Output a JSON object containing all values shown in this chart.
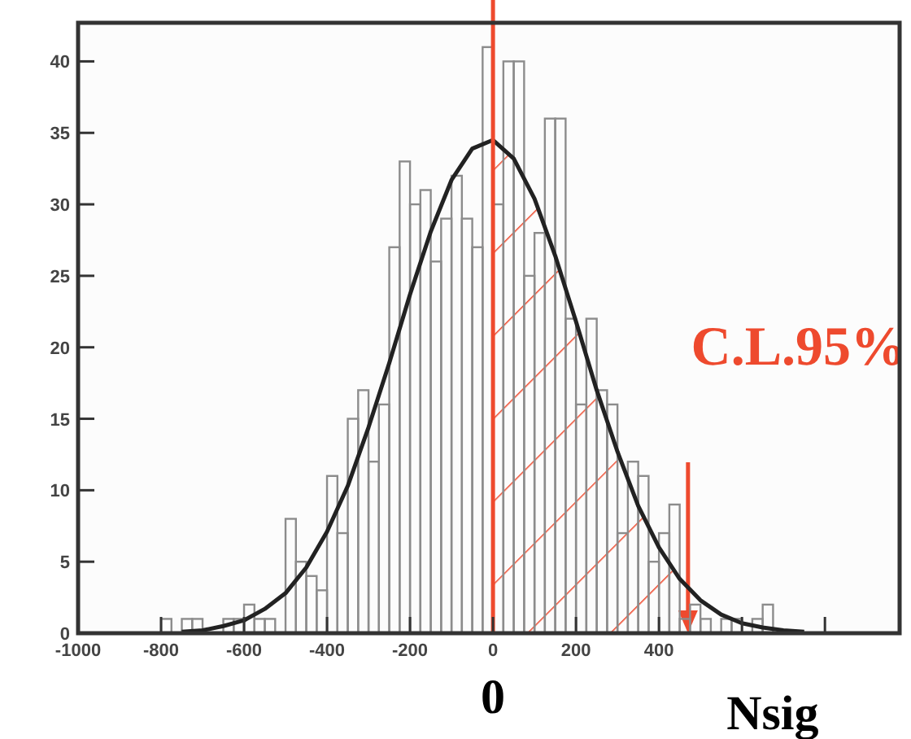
{
  "chart_data": {
    "type": "histogram",
    "color": "#8c8c8c",
    "bins": [
      -1000,
      -975,
      -950,
      -925,
      -900,
      -875,
      -850,
      -825,
      -800,
      -775,
      -750,
      -725,
      -700,
      -675,
      -650,
      -625,
      -600,
      -575,
      -550,
      -525,
      -500,
      -475,
      -450,
      -425,
      -400,
      -375,
      -350,
      -325,
      -300,
      -275,
      -250,
      -225,
      -200,
      -175,
      -150,
      -125,
      -100,
      -75,
      -50,
      -25,
      0,
      25,
      50,
      75,
      100,
      125,
      150,
      175,
      200,
      225,
      250,
      275,
      300,
      325,
      350,
      375,
      400,
      425,
      450,
      475,
      500,
      525,
      550,
      575,
      600,
      625,
      650,
      675,
      700,
      725,
      750,
      775,
      800,
      825,
      850,
      875,
      900,
      925,
      950,
      975,
      1000
    ],
    "values": [
      0,
      0,
      0,
      0,
      0,
      0,
      0,
      0,
      1,
      0,
      1,
      1,
      0,
      0,
      1,
      1,
      2,
      1,
      1,
      0,
      8,
      5,
      4,
      3,
      11,
      7,
      15,
      17,
      12,
      16,
      27,
      33,
      30,
      31,
      26,
      29,
      32,
      29,
      27,
      41,
      30,
      40,
      40,
      25,
      28,
      36,
      36,
      22,
      16,
      22,
      17,
      16,
      7,
      12,
      11,
      5,
      7,
      9,
      1,
      2,
      1,
      0,
      1,
      1,
      0,
      1,
      2,
      0,
      0,
      0,
      0,
      0,
      0,
      0,
      0,
      0,
      0,
      0,
      0,
      0
    ],
    "series": [
      {
        "type": "line",
        "color": "#222222",
        "x": [
          -750,
          -700,
          -650,
          -600,
          -550,
          -500,
          -450,
          -400,
          -350,
          -300,
          -250,
          -200,
          -150,
          -100,
          -50,
          0,
          50,
          100,
          150,
          200,
          250,
          300,
          350,
          400,
          450,
          500,
          550,
          600,
          650,
          700,
          750
        ],
        "values": [
          0.1,
          0.2,
          0.5,
          0.9,
          1.7,
          2.8,
          4.6,
          7.1,
          10.3,
          14.4,
          18.9,
          23.7,
          28.1,
          31.7,
          33.9,
          34.5,
          33.2,
          30.4,
          26.4,
          21.8,
          17,
          12.7,
          8.9,
          6,
          3.8,
          2.3,
          1.3,
          0.7,
          0.4,
          0.2,
          0.1
        ]
      }
    ],
    "xlim": [
      -1000,
      980
    ],
    "ylim": [
      0,
      42.7
    ],
    "xticks": [
      -1000,
      -800,
      -600,
      -400,
      -200,
      0,
      200,
      400,
      {
        "value": 600,
        "label": null
      },
      {
        "value": 800,
        "label": null
      }
    ],
    "yticks": [
      0,
      5,
      10,
      15,
      20,
      25,
      30,
      35,
      40
    ],
    "grid": false,
    "line_style": "solid",
    "ref_lines": [
      {
        "axis": "x",
        "value": 0,
        "label": "0",
        "color": "#ee4a2e"
      }
    ],
    "bands": [
      {
        "axis": "x",
        "from": 0,
        "to": 470,
        "label": "C.L.95%",
        "color": "#ee4a2e"
      }
    ],
    "annotations": [
      "Nsig"
    ]
  }
}
